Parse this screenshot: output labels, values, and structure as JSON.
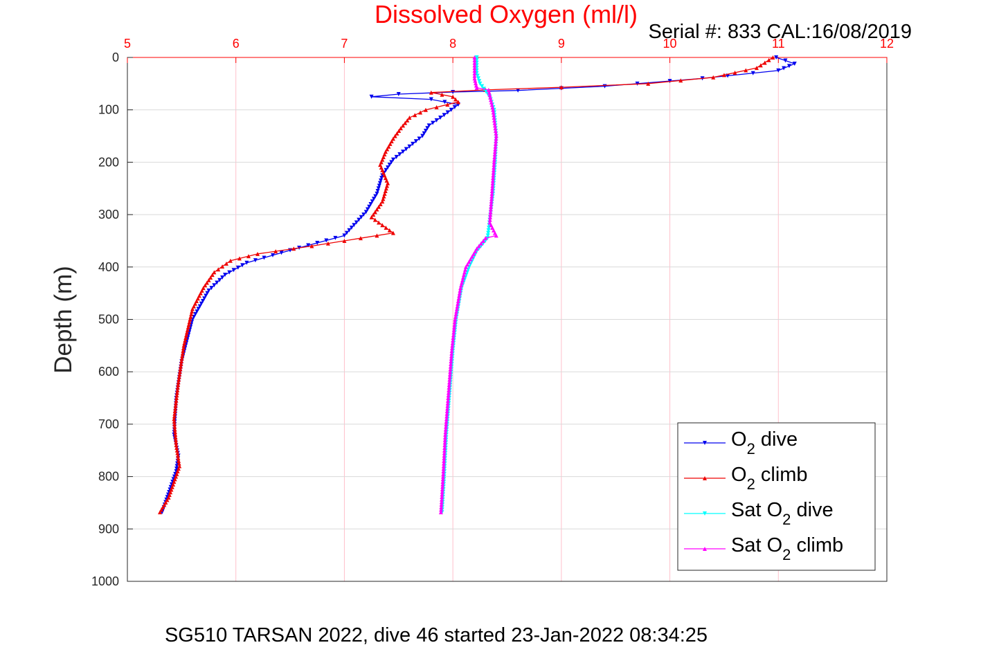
{
  "colors": {
    "o2_dive": "#0000ee",
    "o2_climb": "#ee0000",
    "sat_dive": "#00ffff",
    "sat_climb": "#ff00ff",
    "top_axis": "#ff0000",
    "grid_x": "#ffc0cb",
    "grid_y": "#d9d9d9"
  },
  "chart_data": {
    "type": "line",
    "title": "Dissolved Oxygen (ml/l)",
    "subtitle": "Serial #: 833  CAL:16/08/2019",
    "xlabel": "",
    "ylabel": "Depth (m)",
    "footer": "SG510 TARSAN 2022, dive 46 started 23-Jan-2022 08:34:25",
    "xlim": [
      5,
      12
    ],
    "ylim": [
      0,
      1000
    ],
    "y_reversed": true,
    "x_axis_position": "top",
    "grid": true,
    "legend_position": "bottom-right",
    "x_ticks": [
      "5",
      "6",
      "7",
      "8",
      "9",
      "10",
      "11",
      "12"
    ],
    "y_ticks": [
      "0",
      "100",
      "200",
      "300",
      "400",
      "500",
      "600",
      "700",
      "800",
      "900",
      "1000"
    ],
    "series": [
      {
        "name": "O2 dive",
        "legend_main": "O",
        "legend_sub": "2",
        "legend_tail": " dive",
        "marker": "triangle-down",
        "points": [
          [
            10.98,
            0
          ],
          [
            11.15,
            12
          ],
          [
            11.0,
            25
          ],
          [
            10.3,
            40
          ],
          [
            9.4,
            55
          ],
          [
            8.6,
            63
          ],
          [
            8.0,
            66
          ],
          [
            7.5,
            70
          ],
          [
            7.25,
            75
          ],
          [
            7.8,
            80
          ],
          [
            8.05,
            90
          ],
          [
            7.92,
            110
          ],
          [
            7.78,
            130
          ],
          [
            7.72,
            150
          ],
          [
            7.6,
            170
          ],
          [
            7.45,
            195
          ],
          [
            7.35,
            225
          ],
          [
            7.3,
            260
          ],
          [
            7.2,
            295
          ],
          [
            7.0,
            340
          ],
          [
            6.5,
            368
          ],
          [
            6.1,
            392
          ],
          [
            5.9,
            415
          ],
          [
            5.75,
            445
          ],
          [
            5.6,
            500
          ],
          [
            5.5,
            580
          ],
          [
            5.45,
            650
          ],
          [
            5.43,
            720
          ],
          [
            5.47,
            760
          ],
          [
            5.45,
            790
          ],
          [
            5.4,
            820
          ],
          [
            5.32,
            868
          ]
        ]
      },
      {
        "name": "O2 climb",
        "legend_main": "O",
        "legend_sub": "2",
        "legend_tail": " climb",
        "marker": "triangle-up",
        "points": [
          [
            10.95,
            0
          ],
          [
            10.8,
            20
          ],
          [
            10.4,
            38
          ],
          [
            9.8,
            50
          ],
          [
            9.0,
            57
          ],
          [
            8.3,
            62
          ],
          [
            7.8,
            67
          ],
          [
            8.0,
            75
          ],
          [
            8.05,
            85
          ],
          [
            7.75,
            100
          ],
          [
            7.6,
            115
          ],
          [
            7.52,
            135
          ],
          [
            7.45,
            155
          ],
          [
            7.38,
            180
          ],
          [
            7.33,
            205
          ],
          [
            7.4,
            240
          ],
          [
            7.35,
            275
          ],
          [
            7.25,
            305
          ],
          [
            7.45,
            335
          ],
          [
            7.15,
            345
          ],
          [
            6.7,
            360
          ],
          [
            6.2,
            375
          ],
          [
            5.95,
            388
          ],
          [
            5.8,
            410
          ],
          [
            5.7,
            440
          ],
          [
            5.6,
            480
          ],
          [
            5.52,
            550
          ],
          [
            5.47,
            620
          ],
          [
            5.43,
            690
          ],
          [
            5.45,
            740
          ],
          [
            5.48,
            780
          ],
          [
            5.43,
            810
          ],
          [
            5.38,
            840
          ],
          [
            5.3,
            868
          ]
        ]
      },
      {
        "name": "Sat O2 dive",
        "legend_main": "Sat O",
        "legend_sub": "2",
        "legend_tail": " dive",
        "marker": "triangle-down",
        "points": [
          [
            8.22,
            0
          ],
          [
            8.22,
            30
          ],
          [
            8.25,
            50
          ],
          [
            8.34,
            75
          ],
          [
            8.38,
            100
          ],
          [
            8.4,
            150
          ],
          [
            8.39,
            200
          ],
          [
            8.37,
            260
          ],
          [
            8.34,
            310
          ],
          [
            8.32,
            345
          ],
          [
            8.22,
            370
          ],
          [
            8.15,
            400
          ],
          [
            8.08,
            440
          ],
          [
            8.03,
            500
          ],
          [
            8.0,
            560
          ],
          [
            7.97,
            640
          ],
          [
            7.94,
            720
          ],
          [
            7.92,
            800
          ],
          [
            7.9,
            868
          ]
        ]
      },
      {
        "name": "Sat O2 climb",
        "legend_main": "Sat O",
        "legend_sub": "2",
        "legend_tail": " climb",
        "marker": "triangle-up",
        "points": [
          [
            8.2,
            0
          ],
          [
            8.2,
            40
          ],
          [
            8.22,
            58
          ],
          [
            8.33,
            62
          ],
          [
            8.37,
            100
          ],
          [
            8.4,
            150
          ],
          [
            8.38,
            200
          ],
          [
            8.36,
            260
          ],
          [
            8.34,
            315
          ],
          [
            8.4,
            340
          ],
          [
            8.3,
            345
          ],
          [
            8.22,
            365
          ],
          [
            8.12,
            400
          ],
          [
            8.07,
            440
          ],
          [
            8.02,
            500
          ],
          [
            7.99,
            560
          ],
          [
            7.96,
            640
          ],
          [
            7.93,
            720
          ],
          [
            7.91,
            800
          ],
          [
            7.89,
            868
          ]
        ]
      }
    ]
  }
}
